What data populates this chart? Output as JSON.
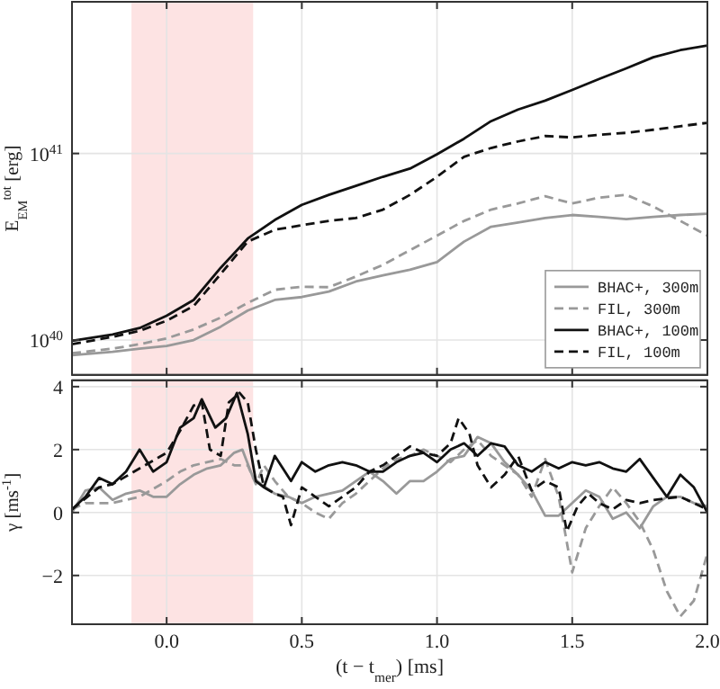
{
  "chart_data": [
    {
      "type": "line",
      "ylabel": "E$_{EM}$$^{tot}$ [erg]",
      "log": true,
      "grid": true,
      "legend": "bottom right",
      "tick_labels": "y",
      "xlim": [
        -0.35,
        2.0
      ],
      "xticks": [
        0,
        0.5,
        1,
        1.5,
        2
      ],
      "ylim": [
        6.5e+39,
        6.5e+41
      ],
      "yticks": [
        {
          "value": 1e+40,
          "label": "10$^{40}$"
        },
        {
          "value": 1e+41,
          "label": "10$^{41}$"
        }
      ],
      "bands": [
        {
          "axis": "x",
          "from": -0.13,
          "to": 0.32,
          "color": "#fde3e3"
        }
      ],
      "x": [
        -0.35,
        -0.2,
        -0.1,
        0,
        0.1,
        0.2,
        0.3,
        0.4,
        0.5,
        0.6,
        0.7,
        0.8,
        0.9,
        1.0,
        1.1,
        1.2,
        1.3,
        1.4,
        1.5,
        1.6,
        1.7,
        1.8,
        1.9,
        2.0
      ],
      "series": [
        {
          "name": "BHAC+, 300m",
          "color": "#999999",
          "line_style": "solid",
          "values": [
            8.3e+39,
            8.65e+39,
            9e+39,
            9.3e+39,
            1e+40,
            1.18e+40,
            1.44e+40,
            1.64e+40,
            1.7e+40,
            1.82e+40,
            2.06e+40,
            2.22e+40,
            2.38e+40,
            2.62e+40,
            3.37e+40,
            4.05e+40,
            4.26e+40,
            4.51e+40,
            4.68e+40,
            4.57e+40,
            4.45e+40,
            4.57e+40,
            4.68e+40,
            4.75e+40
          ]
        },
        {
          "name": "FIL, 300m",
          "color": "#999999",
          "line_style": "dashed",
          "values": [
            8.5e+39,
            9e+39,
            9.5e+39,
            1.02e+40,
            1.14e+40,
            1.32e+40,
            1.58e+40,
            1.86e+40,
            1.93e+40,
            1.92e+40,
            2.19e+40,
            2.53e+40,
            3.03e+40,
            3.63e+40,
            4.35e+40,
            5e+40,
            5.4e+40,
            5.9e+40,
            5.4e+40,
            5.8e+40,
            6e+40,
            5.2e+40,
            4.35e+40,
            3.63e+40
          ]
        },
        {
          "name": "BHAC+, 100m",
          "color": "#111111",
          "line_style": "solid",
          "values": [
            9.9e+39,
            1.07e+40,
            1.16e+40,
            1.35e+40,
            1.64e+40,
            2.44e+40,
            3.5e+40,
            4.4e+40,
            5.3e+40,
            6e+40,
            6.7e+40,
            7.5e+40,
            8.3e+40,
            9.9e+40,
            1.2e+41,
            1.49e+41,
            1.72e+41,
            1.92e+41,
            2.19e+41,
            2.51e+41,
            2.86e+41,
            3.28e+41,
            3.58e+41,
            3.79e+41
          ]
        },
        {
          "name": "FIL, 100m",
          "color": "#111111",
          "line_style": "dashed",
          "values": [
            9.5e+39,
            1.04e+40,
            1.12e+40,
            1.27e+40,
            1.52e+40,
            2.26e+40,
            3.37e+40,
            3.9e+40,
            4.13e+40,
            4.35e+40,
            4.51e+40,
            5e+40,
            6e+40,
            7.5e+40,
            9.6e+40,
            1.07e+41,
            1.16e+41,
            1.24e+41,
            1.22e+41,
            1.26e+41,
            1.29e+41,
            1.34e+41,
            1.4e+41,
            1.46e+41
          ]
        }
      ]
    },
    {
      "type": "line",
      "xlabel": "(t − t$_{mer}$) [ms]",
      "ylabel": "γ [ms$^{-1}$]",
      "grid": true,
      "xlim": [
        -0.35,
        2.0
      ],
      "xticks": [
        {
          "value": 0,
          "label": "0.0"
        },
        {
          "value": 0.5,
          "label": "0.5"
        },
        {
          "value": 1,
          "label": "1.0"
        },
        {
          "value": 1.5,
          "label": "1.5"
        },
        {
          "value": 2,
          "label": "2.0"
        }
      ],
      "ylim": [
        -3.55,
        4.2
      ],
      "yticks": [
        {
          "value": -2,
          "label": "−2"
        },
        0,
        2,
        4
      ],
      "bands": [
        {
          "axis": "x",
          "from": -0.13,
          "to": 0.32,
          "color": "#fde3e3"
        }
      ],
      "series": [
        {
          "color": "#999999",
          "line_style": "solid",
          "x": [
            -0.35,
            -0.3,
            -0.25,
            -0.2,
            -0.15,
            -0.1,
            -0.05,
            0,
            0.05,
            0.1,
            0.15,
            0.2,
            0.25,
            0.28,
            0.32,
            0.35,
            0.4,
            0.45,
            0.5,
            0.55,
            0.6,
            0.65,
            0.7,
            0.75,
            0.8,
            0.85,
            0.9,
            0.95,
            1.0,
            1.05,
            1.1,
            1.15,
            1.2,
            1.25,
            1.3,
            1.35,
            1.4,
            1.45,
            1.5,
            1.55,
            1.6,
            1.65,
            1.7,
            1.75,
            1.8,
            1.85,
            1.9,
            1.95,
            2.0
          ],
          "values": [
            0.0,
            0.7,
            0.8,
            0.4,
            0.6,
            0.7,
            0.5,
            0.5,
            0.9,
            1.2,
            1.4,
            1.5,
            1.9,
            2.0,
            1.1,
            0.9,
            0.6,
            0.5,
            0.3,
            0.5,
            0.6,
            0.7,
            1.0,
            1.3,
            1.0,
            0.6,
            1.0,
            1.0,
            1.3,
            1.7,
            1.8,
            2.4,
            2.2,
            1.6,
            1.2,
            0.7,
            -0.1,
            -0.1,
            0.3,
            0.7,
            0.5,
            -0.2,
            0.0,
            -0.5,
            0.2,
            0.5,
            0.5,
            0.3,
            0.2
          ]
        },
        {
          "color": "#999999",
          "line_style": "dashed",
          "x": [
            -0.35,
            -0.3,
            -0.2,
            -0.1,
            0,
            0.05,
            0.1,
            0.2,
            0.25,
            0.3,
            0.33,
            0.36,
            0.4,
            0.45,
            0.5,
            0.55,
            0.6,
            0.65,
            0.7,
            0.75,
            0.8,
            0.85,
            0.9,
            0.95,
            1.0,
            1.05,
            1.1,
            1.15,
            1.2,
            1.25,
            1.3,
            1.35,
            1.4,
            1.45,
            1.5,
            1.55,
            1.6,
            1.65,
            1.7,
            1.75,
            1.8,
            1.85,
            1.9,
            1.95,
            2.0
          ],
          "values": [
            0.1,
            0.3,
            0.3,
            0.5,
            1.0,
            1.3,
            1.5,
            1.7,
            1.5,
            1.5,
            0.9,
            1.5,
            1.0,
            0.5,
            0.3,
            0.0,
            -0.2,
            0.3,
            0.6,
            1.0,
            1.4,
            1.7,
            1.8,
            2.0,
            1.8,
            1.6,
            2.0,
            2.3,
            1.8,
            1.5,
            1.2,
            0.5,
            1.7,
            0.5,
            -1.9,
            -0.5,
            0.2,
            0.8,
            0.3,
            -0.3,
            -1.2,
            -2.5,
            -3.3,
            -2.8,
            -1.3
          ]
        },
        {
          "color": "#111111",
          "line_style": "solid",
          "x": [
            -0.35,
            -0.3,
            -0.25,
            -0.2,
            -0.15,
            -0.1,
            -0.05,
            0,
            0.05,
            0.1,
            0.13,
            0.18,
            0.22,
            0.26,
            0.3,
            0.33,
            0.36,
            0.4,
            0.43,
            0.46,
            0.5,
            0.55,
            0.6,
            0.65,
            0.7,
            0.75,
            0.8,
            0.85,
            0.9,
            0.95,
            1.0,
            1.05,
            1.1,
            1.15,
            1.2,
            1.25,
            1.3,
            1.35,
            1.4,
            1.45,
            1.5,
            1.55,
            1.6,
            1.65,
            1.7,
            1.75,
            1.8,
            1.85,
            1.9,
            1.95,
            2.0
          ],
          "values": [
            0.1,
            0.5,
            1.1,
            0.9,
            1.3,
            2.0,
            1.3,
            1.6,
            2.7,
            3.0,
            3.6,
            2.7,
            3.0,
            3.8,
            2.5,
            1.0,
            0.8,
            1.8,
            1.4,
            1.0,
            1.6,
            1.3,
            1.5,
            1.6,
            1.5,
            1.3,
            1.3,
            1.6,
            1.8,
            1.9,
            1.6,
            2.0,
            2.2,
            1.8,
            2.2,
            2.1,
            1.5,
            1.3,
            1.6,
            1.4,
            1.6,
            1.5,
            1.6,
            1.4,
            1.3,
            1.7,
            1.1,
            0.5,
            1.2,
            0.8,
            0.0
          ]
        },
        {
          "color": "#111111",
          "line_style": "dashed",
          "x": [
            -0.35,
            -0.25,
            -0.2,
            -0.1,
            0,
            0.05,
            0.1,
            0.13,
            0.16,
            0.2,
            0.23,
            0.27,
            0.3,
            0.33,
            0.36,
            0.4,
            0.43,
            0.46,
            0.5,
            0.55,
            0.6,
            0.65,
            0.7,
            0.75,
            0.8,
            0.85,
            0.9,
            0.95,
            1.0,
            1.05,
            1.08,
            1.12,
            1.15,
            1.2,
            1.25,
            1.3,
            1.35,
            1.4,
            1.45,
            1.48,
            1.52,
            1.56,
            1.6,
            1.65,
            1.7,
            1.75,
            1.8,
            1.9,
            2.0
          ],
          "values": [
            0.1,
            0.8,
            0.9,
            1.4,
            1.9,
            2.6,
            3.4,
            3.5,
            2.0,
            1.8,
            3.5,
            3.8,
            3.5,
            2.0,
            0.8,
            0.6,
            0.5,
            -0.4,
            0.8,
            0.5,
            0.2,
            0.5,
            0.8,
            1.3,
            1.5,
            1.8,
            2.1,
            1.9,
            1.8,
            2.2,
            3.0,
            2.5,
            1.5,
            0.8,
            1.2,
            1.8,
            0.7,
            1.0,
            0.8,
            -0.6,
            0.2,
            0.6,
            0.3,
            0.1,
            0.4,
            0.3,
            0.4,
            0.5,
            0.1
          ]
        }
      ]
    }
  ]
}
